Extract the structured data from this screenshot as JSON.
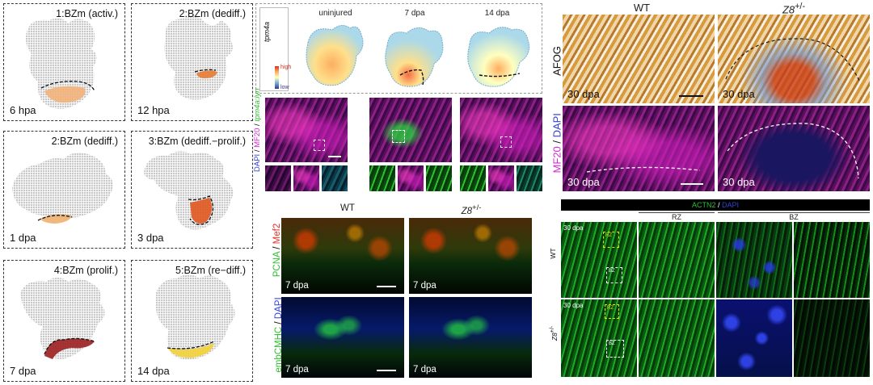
{
  "panelA": {
    "panels": [
      {
        "title": "1:BZm (activ.)",
        "time": "6 hpa",
        "accent": "#f2b27a"
      },
      {
        "title": "2:BZm (dediff.)",
        "time": "12 hpa",
        "accent": "#e77a33"
      },
      {
        "title": "2:BZm (dediff.)",
        "time": "1 dpa",
        "accent": "#f0b070"
      },
      {
        "title": "3:BZm (dediff.−prolif.)",
        "time": "3 dpa",
        "accent": "#e0561f"
      },
      {
        "title": "4:BZm (prolif.)",
        "time": "7 dpa",
        "accent": "#9e1f1f"
      },
      {
        "title": "5:BZm (re−diff.)",
        "time": "14 dpa",
        "accent": "#f3d23a"
      }
    ]
  },
  "panelB": {
    "gene": "tpm4a",
    "columns": [
      "uninjured",
      "7 dpa",
      "14 dpa"
    ],
    "legend": {
      "high": "high",
      "low": "low"
    },
    "stain_label_parts": [
      "DAPI",
      " / ",
      "MF20",
      " / ",
      "tpm4a",
      ":",
      "lyn"
    ]
  },
  "panelC": {
    "columns": [
      "WT",
      "Z8",
      "+/-"
    ],
    "row1_label": [
      "PCNA",
      " / ",
      "Mef2"
    ],
    "row2_label": [
      "embCMHC",
      " / ",
      "DAPI"
    ],
    "time": "7 dpa"
  },
  "panelD": {
    "columns": [
      "WT",
      "Z8",
      "+/-"
    ],
    "row1_label": "AFOG",
    "row2_label": [
      "MF20",
      " / ",
      "DAPI"
    ],
    "time": "30 dpa"
  },
  "panelE": {
    "header": [
      "ACTN2",
      " / ",
      "DAPI"
    ],
    "subheaders": [
      "RZ",
      "BZ"
    ],
    "rows": [
      "WT",
      "Z8"
    ],
    "row_sup": "+/-",
    "time": "30 dpa",
    "roi_labels": [
      "RZ",
      "BZ"
    ]
  },
  "colors": {
    "grid": "#c8c8c8",
    "magenta": "#d02ad0",
    "green": "#2fbf2f",
    "red": "#e0322a",
    "blue": "#3340d8"
  }
}
